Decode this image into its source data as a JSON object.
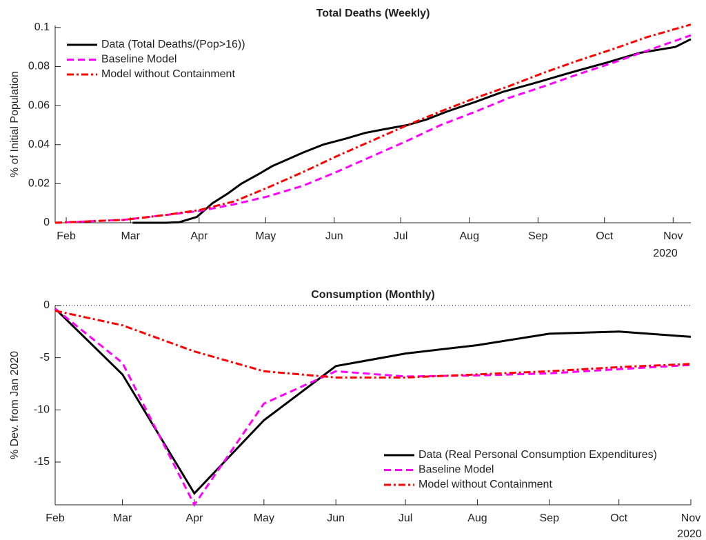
{
  "chart_data": [
    {
      "type": "line",
      "title": "Total Deaths (Weekly)",
      "y_label": "% of Initial Population",
      "x_year_label": "2020",
      "xlim": [
        27,
        314
      ],
      "ylim": [
        0,
        0.101
      ],
      "xticks": [
        {
          "value": 32,
          "label": "Feb"
        },
        {
          "value": 61,
          "label": "Mar"
        },
        {
          "value": 92,
          "label": "Apr"
        },
        {
          "value": 122,
          "label": "May"
        },
        {
          "value": 153,
          "label": "Jun"
        },
        {
          "value": 183,
          "label": "Jul"
        },
        {
          "value": 214,
          "label": "Aug"
        },
        {
          "value": 245,
          "label": "Sep"
        },
        {
          "value": 275,
          "label": "Oct"
        },
        {
          "value": 306,
          "label": "Nov"
        }
      ],
      "yticks": [
        0,
        0.02,
        0.04,
        0.06,
        0.08,
        0.1
      ],
      "legend": "upper left",
      "zero_line": false,
      "series": [
        {
          "name": "Data (Total Deaths/(Pop>16))",
          "color": "#000000",
          "linestyle": "solid",
          "x": [
            62,
            77,
            83,
            91,
            98,
            105,
            111,
            119,
            125,
            133,
            139,
            148,
            158,
            167,
            176,
            186,
            195,
            204,
            217,
            229,
            245,
            260,
            276,
            291,
            307,
            314
          ],
          "values": [
            0,
            0,
            0.0003,
            0.003,
            0.01,
            0.015,
            0.02,
            0.025,
            0.029,
            0.033,
            0.036,
            0.04,
            0.043,
            0.046,
            0.048,
            0.05,
            0.053,
            0.057,
            0.062,
            0.067,
            0.072,
            0.077,
            0.082,
            0.087,
            0.09,
            0.094
          ]
        },
        {
          "name": "Baseline Model",
          "color": "#ff00ff",
          "linestyle": "dashed",
          "x": [
            27,
            58,
            77,
            92,
            108,
            123,
            139,
            154,
            170,
            186,
            201,
            217,
            232,
            248,
            263,
            279,
            294,
            314
          ],
          "values": [
            0,
            0.0015,
            0.004,
            0.006,
            0.0095,
            0.0135,
            0.019,
            0.026,
            0.034,
            0.042,
            0.05,
            0.057,
            0.064,
            0.07,
            0.076,
            0.082,
            0.088,
            0.096
          ]
        },
        {
          "name": "Model without Containment",
          "color": "#ff0000",
          "linestyle": "dashdot",
          "x": [
            27,
            58,
            77,
            92,
            108,
            123,
            139,
            154,
            170,
            186,
            201,
            217,
            232,
            248,
            263,
            279,
            294,
            314
          ],
          "values": [
            0,
            0.0015,
            0.004,
            0.0065,
            0.011,
            0.018,
            0.026,
            0.034,
            0.042,
            0.05,
            0.057,
            0.064,
            0.07,
            0.077,
            0.083,
            0.089,
            0.095,
            0.1015
          ]
        }
      ]
    },
    {
      "type": "line",
      "title": "Consumption (Monthly)",
      "y_label": "% Dev. from Jan 2020",
      "x_year_label": "2020",
      "xlim": [
        32,
        306
      ],
      "ylim": [
        -19.1,
        0
      ],
      "xticks": [
        {
          "value": 32,
          "label": "Feb"
        },
        {
          "value": 61,
          "label": "Mar"
        },
        {
          "value": 92,
          "label": "Apr"
        },
        {
          "value": 122,
          "label": "May"
        },
        {
          "value": 153,
          "label": "Jun"
        },
        {
          "value": 183,
          "label": "Jul"
        },
        {
          "value": 214,
          "label": "Aug"
        },
        {
          "value": 245,
          "label": "Sep"
        },
        {
          "value": 275,
          "label": "Oct"
        },
        {
          "value": 306,
          "label": "Nov"
        }
      ],
      "yticks": [
        0,
        -5,
        -10,
        -15
      ],
      "legend": "lower right",
      "zero_line": true,
      "series": [
        {
          "name": "Data (Real Personal Consumption Expenditures)",
          "color": "#000000",
          "linestyle": "solid",
          "x": [
            32,
            61,
            92,
            122,
            153,
            183,
            214,
            245,
            275,
            306
          ],
          "values": [
            -0.3,
            -6.6,
            -18.0,
            -11.0,
            -5.8,
            -4.6,
            -3.8,
            -2.7,
            -2.5,
            -3.0
          ]
        },
        {
          "name": "Baseline Model",
          "color": "#ff00ff",
          "linestyle": "dashed",
          "x": [
            32,
            61,
            92,
            122,
            153,
            183,
            214,
            245,
            275,
            306
          ],
          "values": [
            -0.3,
            -5.5,
            -19.1,
            -9.4,
            -6.3,
            -6.8,
            -6.7,
            -6.5,
            -6.1,
            -5.7
          ]
        },
        {
          "name": "Model without Containment",
          "color": "#ff0000",
          "linestyle": "dashdot",
          "x": [
            32,
            61,
            92,
            122,
            153,
            183,
            214,
            245,
            275,
            306
          ],
          "values": [
            -0.5,
            -1.9,
            -4.4,
            -6.3,
            -6.9,
            -6.9,
            -6.6,
            -6.3,
            -5.9,
            -5.6
          ]
        }
      ]
    }
  ]
}
